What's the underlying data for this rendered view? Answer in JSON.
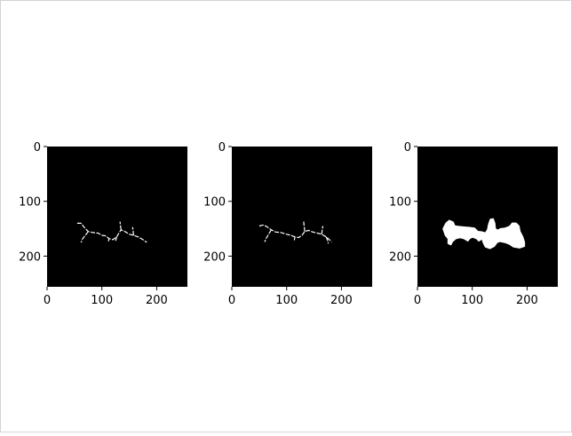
{
  "chart_data": [
    {
      "type": "heatmap",
      "panel": "left",
      "title": "",
      "xlabel": "",
      "ylabel": "",
      "xlim": [
        0,
        256
      ],
      "ylim": [
        256,
        0
      ],
      "xticks": [
        0,
        100,
        200
      ],
      "yticks": [
        0,
        100,
        200
      ],
      "background": "#000000",
      "foreground": "#ffffff",
      "content": "thin skeleton lines",
      "polylines": [
        [
          [
            55,
            140
          ],
          [
            62,
            140
          ],
          [
            68,
            148
          ],
          [
            75,
            155
          ],
          [
            84,
            157
          ],
          [
            93,
            158
          ],
          [
            100,
            162
          ],
          [
            107,
            163
          ],
          [
            113,
            168
          ],
          [
            120,
            170
          ],
          [
            127,
            165
          ],
          [
            131,
            158
          ],
          [
            135,
            152
          ],
          [
            142,
            155
          ],
          [
            150,
            160
          ],
          [
            158,
            162
          ],
          [
            166,
            165
          ],
          [
            175,
            170
          ],
          [
            182,
            175
          ]
        ],
        [
          [
            75,
            155
          ],
          [
            70,
            162
          ],
          [
            65,
            168
          ],
          [
            62,
            175
          ]
        ],
        [
          [
            113,
            168
          ],
          [
            112,
            173
          ]
        ],
        [
          [
            127,
            165
          ],
          [
            125,
            172
          ]
        ],
        [
          [
            135,
            152
          ],
          [
            134,
            145
          ],
          [
            133,
            137
          ]
        ],
        [
          [
            158,
            162
          ],
          [
            157,
            155
          ],
          [
            156,
            147
          ]
        ]
      ]
    },
    {
      "type": "heatmap",
      "panel": "middle",
      "title": "",
      "xlabel": "",
      "ylabel": "",
      "xlim": [
        0,
        256
      ],
      "ylim": [
        256,
        0
      ],
      "xticks": [
        0,
        100,
        200
      ],
      "yticks": [
        0,
        100,
        200
      ],
      "background": "#000000",
      "foreground": "#ffffff",
      "content": "thin skeleton lines",
      "polylines": [
        [
          [
            50,
            145
          ],
          [
            58,
            143
          ],
          [
            65,
            147
          ],
          [
            72,
            152
          ],
          [
            80,
            156
          ],
          [
            90,
            157
          ],
          [
            100,
            160
          ],
          [
            108,
            162
          ],
          [
            115,
            165
          ],
          [
            122,
            166
          ],
          [
            128,
            162
          ],
          [
            133,
            155
          ],
          [
            140,
            153
          ],
          [
            148,
            156
          ],
          [
            156,
            158
          ],
          [
            164,
            160
          ],
          [
            172,
            165
          ],
          [
            178,
            170
          ],
          [
            182,
            174
          ]
        ],
        [
          [
            72,
            152
          ],
          [
            67,
            160
          ],
          [
            63,
            167
          ],
          [
            60,
            174
          ]
        ],
        [
          [
            115,
            165
          ],
          [
            114,
            171
          ]
        ],
        [
          [
            133,
            155
          ],
          [
            132,
            146
          ],
          [
            131,
            137
          ]
        ],
        [
          [
            164,
            160
          ],
          [
            165,
            152
          ],
          [
            166,
            145
          ]
        ],
        [
          [
            172,
            165
          ],
          [
            175,
            172
          ],
          [
            176,
            177
          ]
        ]
      ]
    },
    {
      "type": "heatmap",
      "panel": "right",
      "title": "",
      "xlabel": "",
      "ylabel": "",
      "xlim": [
        0,
        256
      ],
      "ylim": [
        256,
        0
      ],
      "xticks": [
        0,
        100,
        200
      ],
      "yticks": [
        0,
        100,
        200
      ],
      "background": "#000000",
      "foreground": "#ffffff",
      "content": "filled silhouette mask",
      "polygons": [
        [
          [
            47,
            150
          ],
          [
            52,
            140
          ],
          [
            58,
            135
          ],
          [
            65,
            138
          ],
          [
            68,
            145
          ],
          [
            75,
            146
          ],
          [
            85,
            147
          ],
          [
            95,
            148
          ],
          [
            104,
            149
          ],
          [
            110,
            155
          ],
          [
            118,
            156
          ],
          [
            124,
            158
          ],
          [
            128,
            152
          ],
          [
            130,
            142
          ],
          [
            133,
            133
          ],
          [
            138,
            132
          ],
          [
            141,
            140
          ],
          [
            142,
            150
          ],
          [
            146,
            153
          ],
          [
            152,
            150
          ],
          [
            160,
            149
          ],
          [
            168,
            146
          ],
          [
            173,
            140
          ],
          [
            180,
            140
          ],
          [
            185,
            145
          ],
          [
            187,
            155
          ],
          [
            192,
            165
          ],
          [
            195,
            175
          ],
          [
            195,
            182
          ],
          [
            186,
            185
          ],
          [
            175,
            183
          ],
          [
            168,
            178
          ],
          [
            160,
            175
          ],
          [
            150,
            173
          ],
          [
            145,
            175
          ],
          [
            140,
            182
          ],
          [
            132,
            186
          ],
          [
            124,
            183
          ],
          [
            120,
            175
          ],
          [
            118,
            168
          ],
          [
            112,
            172
          ],
          [
            108,
            168
          ],
          [
            100,
            165
          ],
          [
            95,
            168
          ],
          [
            92,
            172
          ],
          [
            85,
            168
          ],
          [
            78,
            166
          ],
          [
            70,
            168
          ],
          [
            64,
            173
          ],
          [
            61,
            179
          ],
          [
            56,
            177
          ],
          [
            56,
            168
          ],
          [
            51,
            162
          ],
          [
            49,
            156
          ]
        ]
      ]
    }
  ]
}
